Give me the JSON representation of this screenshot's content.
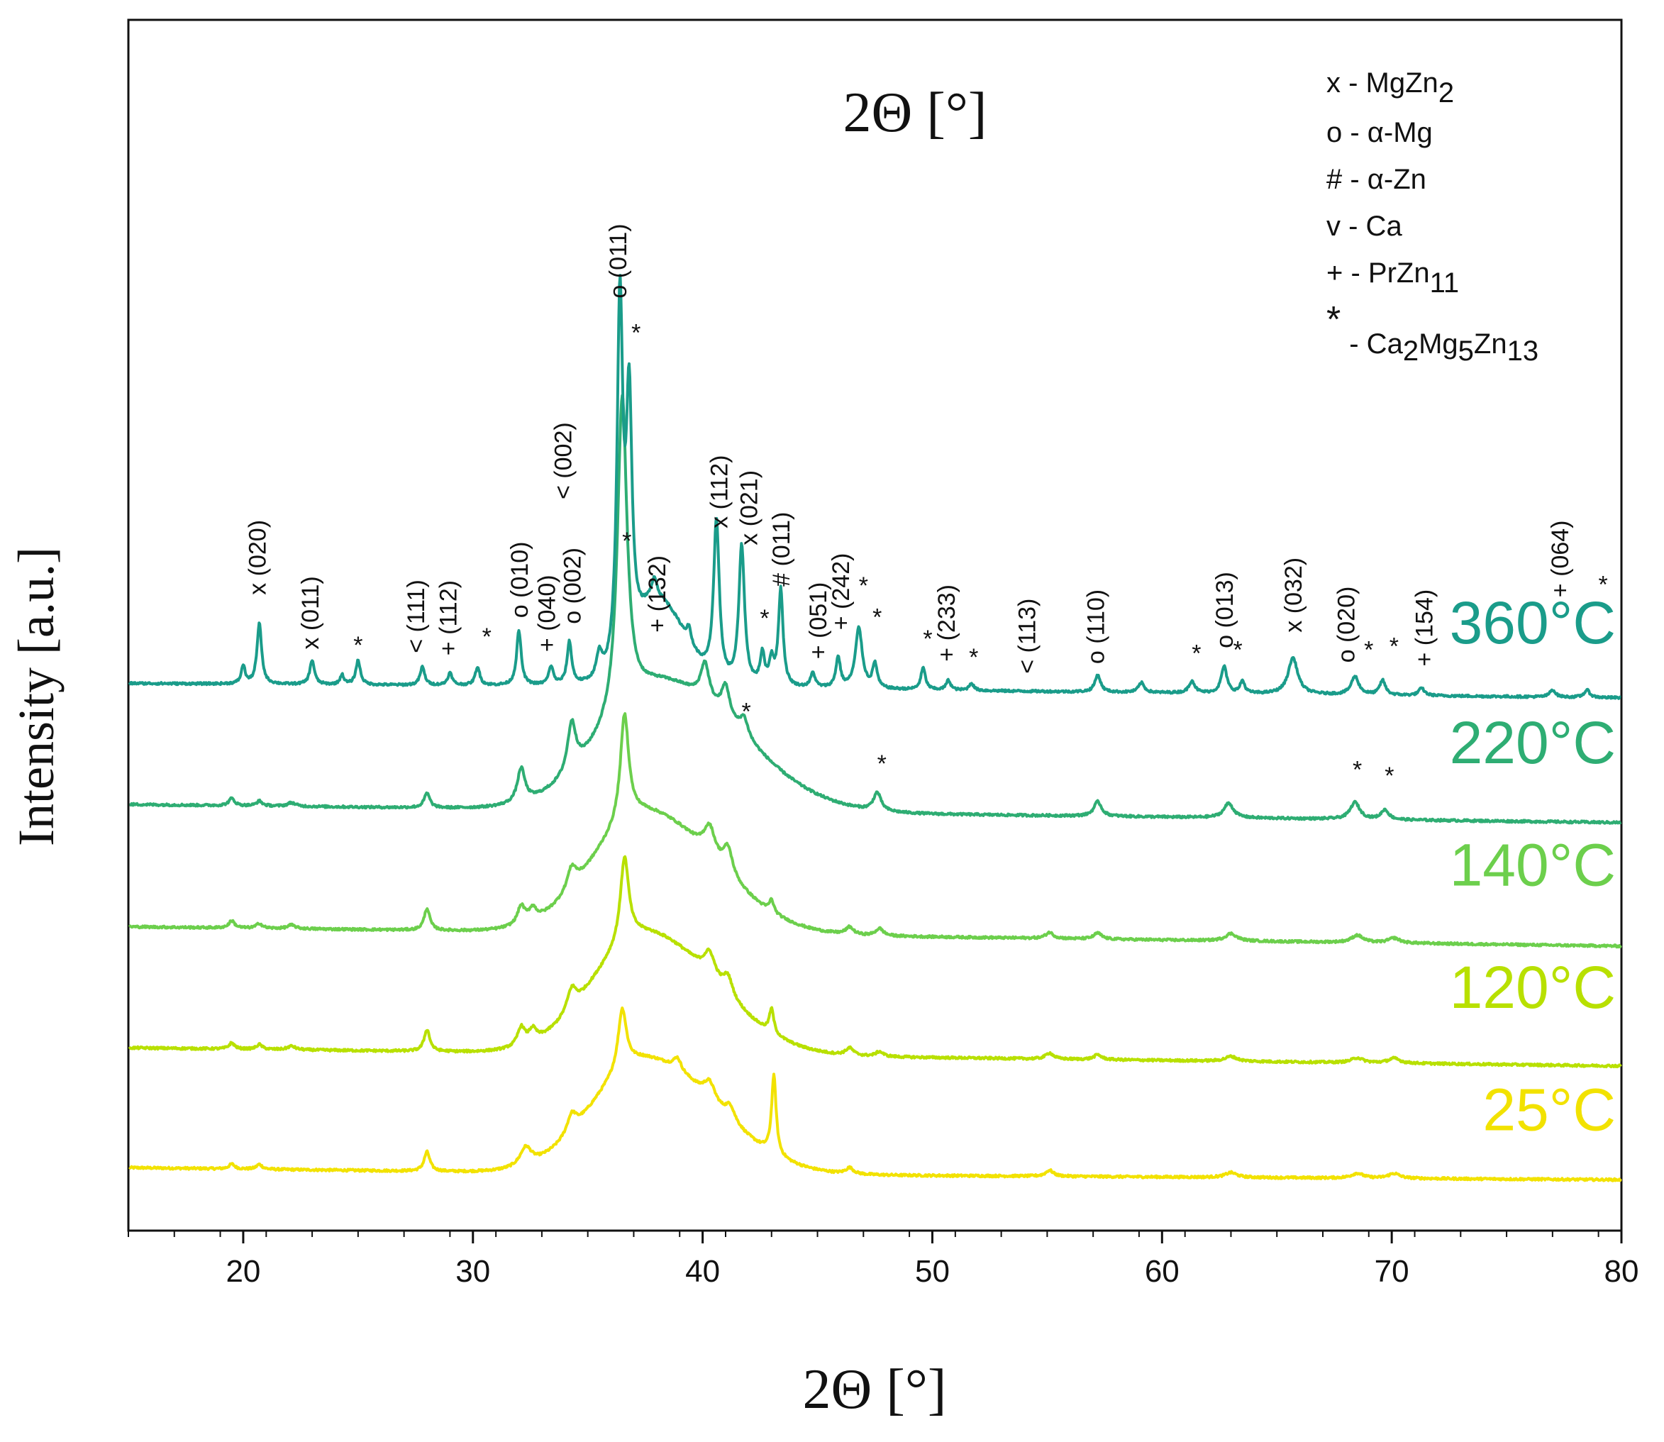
{
  "chart_data": {
    "type": "line",
    "title": "2Θ [°]",
    "xlabel": "2Θ [°]",
    "ylabel": "Intensity [a.u.]",
    "xlim": [
      15,
      80
    ],
    "xticks": [
      20,
      30,
      40,
      50,
      60,
      70,
      80
    ],
    "ylim": [
      0,
      100
    ],
    "grid": false,
    "legend_placement": "top-right",
    "legend": [
      {
        "symbol": "x",
        "text": "- MgZn",
        "sub": "2"
      },
      {
        "symbol": "o",
        "text": "- α-Mg",
        "sub": ""
      },
      {
        "symbol": "#",
        "text": "- α-Zn",
        "sub": ""
      },
      {
        "symbol": "v",
        "text": "- Ca",
        "sub": ""
      },
      {
        "symbol": "+",
        "text": "- PrZn",
        "sub": "11"
      },
      {
        "symbol": "*",
        "text": "- Ca2Mg5Zn13",
        "sub": ""
      }
    ],
    "series": [
      {
        "name": "25°C",
        "color": "#f2e200",
        "baseline": [
          [
            15,
            5.2
          ],
          [
            36.5,
            4.7
          ],
          [
            80,
            4.2
          ]
        ],
        "hump": {
          "center": 37.5,
          "width": 3.0,
          "height": 9.5
        },
        "peaks": [
          [
            19.5,
            0.4,
            0.15
          ],
          [
            20.7,
            0.4,
            0.15
          ],
          [
            28.0,
            1.6,
            0.15
          ],
          [
            32.3,
            1.5,
            0.3
          ],
          [
            34.3,
            1.5,
            0.25
          ],
          [
            36.5,
            5.0,
            0.22
          ],
          [
            38.9,
            1.0,
            0.2
          ],
          [
            40.3,
            1.5,
            0.3
          ],
          [
            41.2,
            1.2,
            0.25
          ],
          [
            43.1,
            6.5,
            0.12
          ],
          [
            46.4,
            0.5,
            0.2
          ],
          [
            55.1,
            0.5,
            0.2
          ],
          [
            63.0,
            0.4,
            0.3
          ],
          [
            68.5,
            0.4,
            0.3
          ],
          [
            70.1,
            0.4,
            0.3
          ]
        ]
      },
      {
        "name": "120°C",
        "color": "#b8e000",
        "baseline": [
          [
            15,
            15.1
          ],
          [
            36.5,
            14.6
          ],
          [
            80,
            13.6
          ]
        ],
        "hump": {
          "center": 37.5,
          "width": 3.0,
          "height": 10.0
        },
        "peaks": [
          [
            19.5,
            0.5,
            0.15
          ],
          [
            20.7,
            0.4,
            0.15
          ],
          [
            22.1,
            0.3,
            0.2
          ],
          [
            28.0,
            1.8,
            0.15
          ],
          [
            32.1,
            1.5,
            0.2
          ],
          [
            32.6,
            1.0,
            0.2
          ],
          [
            34.3,
            1.8,
            0.25
          ],
          [
            36.6,
            7.0,
            0.22
          ],
          [
            40.3,
            2.0,
            0.3
          ],
          [
            41.1,
            1.6,
            0.25
          ],
          [
            43.0,
            2.0,
            0.12
          ],
          [
            46.4,
            0.6,
            0.2
          ],
          [
            47.7,
            0.4,
            0.2
          ],
          [
            55.1,
            0.5,
            0.2
          ],
          [
            57.2,
            0.4,
            0.2
          ],
          [
            63.0,
            0.4,
            0.3
          ],
          [
            68.5,
            0.4,
            0.3
          ],
          [
            70.1,
            0.4,
            0.3
          ]
        ]
      },
      {
        "name": "140°C",
        "color": "#6ccf4c",
        "baseline": [
          [
            15,
            25.1
          ],
          [
            36.5,
            24.6
          ],
          [
            80,
            23.5
          ]
        ],
        "hump": {
          "center": 37.5,
          "width": 3.0,
          "height": 10.0
        },
        "peaks": [
          [
            19.5,
            0.6,
            0.15
          ],
          [
            20.7,
            0.4,
            0.15
          ],
          [
            22.1,
            0.3,
            0.2
          ],
          [
            28.0,
            1.8,
            0.15
          ],
          [
            32.1,
            1.5,
            0.2
          ],
          [
            32.6,
            1.0,
            0.2
          ],
          [
            34.3,
            1.8,
            0.25
          ],
          [
            36.6,
            8.8,
            0.22
          ],
          [
            40.3,
            2.4,
            0.3
          ],
          [
            41.1,
            2.2,
            0.25
          ],
          [
            43.0,
            1.0,
            0.12
          ],
          [
            46.4,
            0.6,
            0.2
          ],
          [
            47.7,
            0.6,
            0.2
          ],
          [
            55.1,
            0.5,
            0.2
          ],
          [
            57.2,
            0.5,
            0.2
          ],
          [
            63.0,
            0.6,
            0.3
          ],
          [
            68.5,
            0.6,
            0.3
          ],
          [
            70.1,
            0.4,
            0.3
          ]
        ]
      },
      {
        "name": "220°C",
        "color": "#2ead73",
        "baseline": [
          [
            15,
            35.2
          ],
          [
            36.5,
            34.7
          ],
          [
            80,
            33.7
          ]
        ],
        "hump": {
          "center": 38.3,
          "width": 3.4,
          "height": 10.5
        },
        "peaks": [
          [
            19.5,
            0.6,
            0.15
          ],
          [
            20.7,
            0.4,
            0.15
          ],
          [
            22.1,
            0.3,
            0.2
          ],
          [
            28.0,
            1.2,
            0.15
          ],
          [
            32.1,
            2.8,
            0.2
          ],
          [
            34.3,
            4.0,
            0.22
          ],
          [
            36.5,
            26.0,
            0.25
          ],
          [
            40.1,
            3.0,
            0.22
          ],
          [
            41.0,
            2.6,
            0.22
          ],
          [
            41.8,
            1.5,
            0.22
          ],
          [
            47.6,
            1.5,
            0.2
          ],
          [
            57.2,
            1.2,
            0.2
          ],
          [
            62.9,
            1.2,
            0.25
          ],
          [
            68.4,
            1.4,
            0.25
          ],
          [
            69.7,
            0.8,
            0.2
          ]
        ]
      },
      {
        "name": "360°C",
        "color": "#1a9c8a",
        "baseline": [
          [
            15,
            45.2
          ],
          [
            36.5,
            44.9
          ],
          [
            80,
            44.0
          ]
        ],
        "hump": {
          "center": 38.0,
          "width": 1.2,
          "height": 7.0
        },
        "peaks": [
          [
            20.0,
            1.5,
            0.1
          ],
          [
            20.7,
            5.0,
            0.12
          ],
          [
            23.0,
            2.0,
            0.12
          ],
          [
            24.3,
            0.8,
            0.1
          ],
          [
            25.0,
            2.0,
            0.12
          ],
          [
            27.8,
            1.5,
            0.12
          ],
          [
            29.0,
            1.0,
            0.12
          ],
          [
            30.2,
            1.5,
            0.12
          ],
          [
            32.0,
            4.5,
            0.12
          ],
          [
            33.4,
            1.5,
            0.12
          ],
          [
            34.2,
            3.5,
            0.12
          ],
          [
            35.5,
            2.0,
            0.15
          ],
          [
            36.4,
            30.0,
            0.15
          ],
          [
            36.8,
            20.0,
            0.15
          ],
          [
            37.9,
            1.5,
            0.12
          ],
          [
            39.4,
            1.2,
            0.12
          ],
          [
            40.6,
            13.0,
            0.15
          ],
          [
            41.7,
            11.5,
            0.15
          ],
          [
            42.6,
            2.5,
            0.12
          ],
          [
            43.0,
            2.0,
            0.12
          ],
          [
            43.4,
            8.0,
            0.12
          ],
          [
            44.8,
            1.2,
            0.12
          ],
          [
            45.9,
            2.5,
            0.12
          ],
          [
            46.8,
            5.0,
            0.18
          ],
          [
            47.5,
            2.0,
            0.12
          ],
          [
            49.6,
            1.8,
            0.12
          ],
          [
            50.7,
            0.8,
            0.12
          ],
          [
            51.7,
            0.6,
            0.12
          ],
          [
            57.2,
            1.4,
            0.15
          ],
          [
            59.1,
            0.8,
            0.15
          ],
          [
            61.3,
            1.0,
            0.15
          ],
          [
            62.7,
            2.2,
            0.15
          ],
          [
            63.5,
            1.0,
            0.12
          ],
          [
            65.7,
            3.0,
            0.25
          ],
          [
            68.4,
            1.5,
            0.2
          ],
          [
            69.6,
            1.2,
            0.15
          ],
          [
            71.3,
            0.6,
            0.15
          ],
          [
            77.0,
            0.6,
            0.15
          ],
          [
            78.5,
            0.6,
            0.15
          ]
        ]
      }
    ],
    "curve_labels": [
      {
        "text": "360°C",
        "color": "#1a9c8a",
        "y": 48.5
      },
      {
        "text": "220°C",
        "color": "#2ead73",
        "y": 38.6
      },
      {
        "text": "140°C",
        "color": "#6ccf4c",
        "y": 28.5
      },
      {
        "text": "120°C",
        "color": "#b8e000",
        "y": 18.4
      },
      {
        "text": "25°C",
        "color": "#f2e200",
        "y": 8.3
      }
    ],
    "annotations": [
      {
        "text": "x (020)",
        "x": 20.7,
        "y": 52.5,
        "vertical": true
      },
      {
        "text": "x (011)",
        "x": 23.0,
        "y": 48.0,
        "vertical": true
      },
      {
        "text": "*",
        "x": 25.0,
        "y": 47.7,
        "vertical": false
      },
      {
        "text": "< (111)",
        "x": 27.6,
        "y": 47.7,
        "vertical": true
      },
      {
        "text": "+ (112)",
        "x": 29.0,
        "y": 47.5,
        "vertical": true
      },
      {
        "text": "*",
        "x": 30.6,
        "y": 48.4,
        "vertical": false
      },
      {
        "text": "o (010)",
        "x": 32.1,
        "y": 50.6,
        "vertical": true
      },
      {
        "text": "+ (040)",
        "x": 33.3,
        "y": 47.8,
        "vertical": true
      },
      {
        "text": "o (002)",
        "x": 34.4,
        "y": 50.1,
        "vertical": true
      },
      {
        "text": "< (002)",
        "x": 34.0,
        "y": 60.4,
        "vertical": true
      },
      {
        "text": "o (011)",
        "x": 36.4,
        "y": 77.0,
        "vertical": true
      },
      {
        "text": "*",
        "x": 37.1,
        "y": 73.5,
        "vertical": false
      },
      {
        "text": "*",
        "x": 36.7,
        "y": 56.3,
        "vertical": false
      },
      {
        "text": "+ (132)",
        "x": 38.1,
        "y": 49.4,
        "vertical": true
      },
      {
        "text": "x (112)",
        "x": 40.8,
        "y": 58.0,
        "vertical": true
      },
      {
        "text": "x (021)",
        "x": 42.1,
        "y": 56.6,
        "vertical": true
      },
      {
        "text": "*",
        "x": 42.7,
        "y": 49.9,
        "vertical": false
      },
      {
        "text": "# (011)",
        "x": 43.5,
        "y": 53.2,
        "vertical": true
      },
      {
        "text": "+ (051)",
        "x": 45.1,
        "y": 47.2,
        "vertical": true
      },
      {
        "text": "+ (242)",
        "x": 46.1,
        "y": 49.6,
        "vertical": true
      },
      {
        "text": "*",
        "x": 47.0,
        "y": 52.6,
        "vertical": false
      },
      {
        "text": "*",
        "x": 47.6,
        "y": 50.0,
        "vertical": false
      },
      {
        "text": "*",
        "x": 49.8,
        "y": 48.2,
        "vertical": false
      },
      {
        "text": "+ (233)",
        "x": 50.7,
        "y": 47.0,
        "vertical": true
      },
      {
        "text": "*",
        "x": 51.8,
        "y": 46.7,
        "vertical": false
      },
      {
        "text": "< (113)",
        "x": 54.2,
        "y": 46.0,
        "vertical": true
      },
      {
        "text": "o (110)",
        "x": 57.2,
        "y": 46.8,
        "vertical": true
      },
      {
        "text": "*",
        "x": 61.5,
        "y": 47.0,
        "vertical": false
      },
      {
        "text": "o (013)",
        "x": 62.8,
        "y": 48.1,
        "vertical": true
      },
      {
        "text": "*",
        "x": 63.3,
        "y": 47.3,
        "vertical": false
      },
      {
        "text": "x (032)",
        "x": 65.8,
        "y": 49.4,
        "vertical": true
      },
      {
        "text": "o (020)",
        "x": 68.1,
        "y": 46.9,
        "vertical": true
      },
      {
        "text": "*",
        "x": 69.0,
        "y": 47.3,
        "vertical": false
      },
      {
        "text": "*",
        "x": 70.1,
        "y": 47.6,
        "vertical": false
      },
      {
        "text": "+ (154)",
        "x": 71.5,
        "y": 46.6,
        "vertical": true
      },
      {
        "text": "+ (064)",
        "x": 77.4,
        "y": 52.3,
        "vertical": true
      },
      {
        "text": "*",
        "x": 79.2,
        "y": 52.7,
        "vertical": false
      },
      {
        "text": "*",
        "x": 41.9,
        "y": 42.2,
        "vertical": false
      },
      {
        "text": "*",
        "x": 47.8,
        "y": 37.9,
        "vertical": false
      },
      {
        "text": "*",
        "x": 68.5,
        "y": 37.4,
        "vertical": false
      },
      {
        "text": "*",
        "x": 69.9,
        "y": 36.9,
        "vertical": false
      }
    ]
  }
}
